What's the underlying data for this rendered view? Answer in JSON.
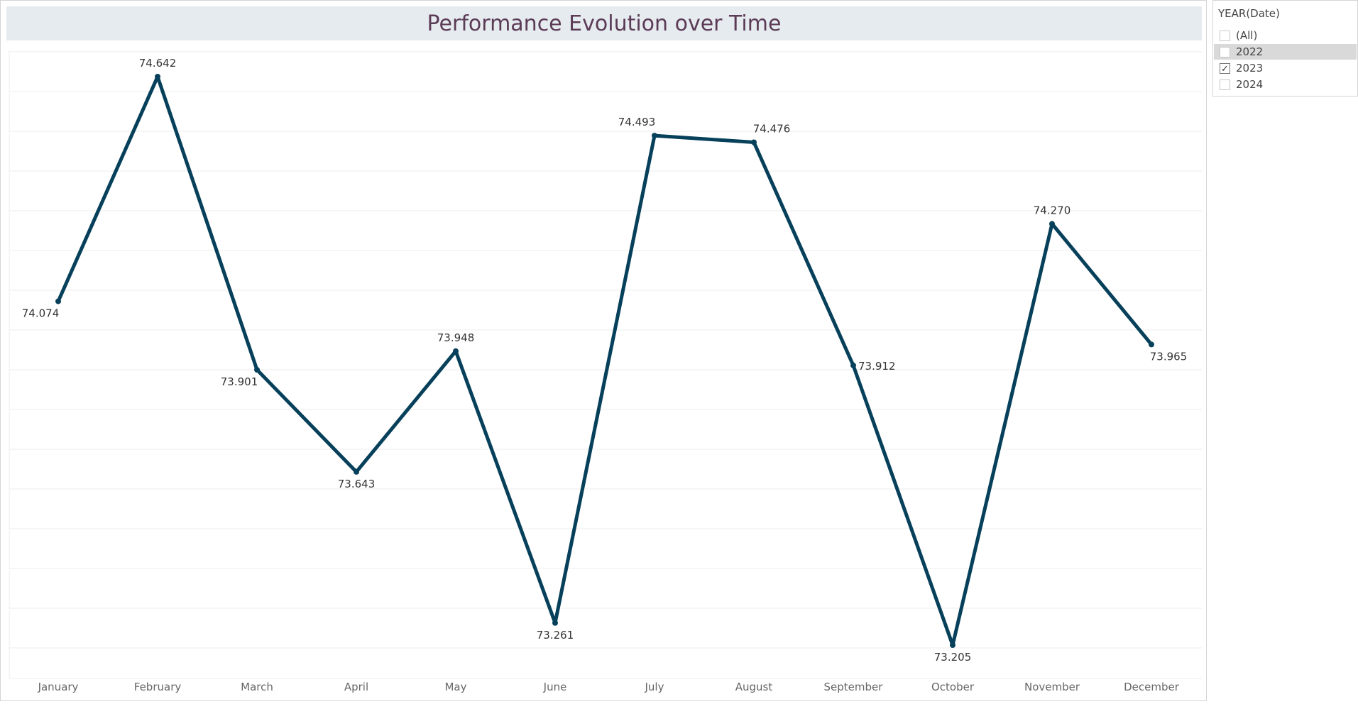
{
  "chart_data": {
    "type": "line",
    "title": "Performance Evolution over Time",
    "categories": [
      "January",
      "February",
      "March",
      "April",
      "May",
      "June",
      "July",
      "August",
      "September",
      "October",
      "November",
      "December"
    ],
    "series": [
      {
        "values": [
          74.074,
          74.642,
          73.901,
          73.643,
          73.948,
          73.261,
          74.493,
          74.476,
          73.912,
          73.205,
          74.27,
          73.965
        ],
        "labels": [
          "74.074",
          "74.642",
          "73.901",
          "73.643",
          "73.948",
          "73.261",
          "74.493",
          "74.476",
          "73.912",
          "73.205",
          "74.270",
          "73.965"
        ]
      }
    ],
    "xlabel": "",
    "ylabel": "",
    "ylim": [
      73.2,
      74.7
    ],
    "grid": "horizontal",
    "line_color": "#07405a"
  },
  "filter": {
    "title": "YEAR(Date)",
    "options": [
      {
        "label": "(All)",
        "checked": false
      },
      {
        "label": "2022",
        "checked": false
      },
      {
        "label": "2023",
        "checked": true
      },
      {
        "label": "2024",
        "checked": false
      }
    ]
  }
}
